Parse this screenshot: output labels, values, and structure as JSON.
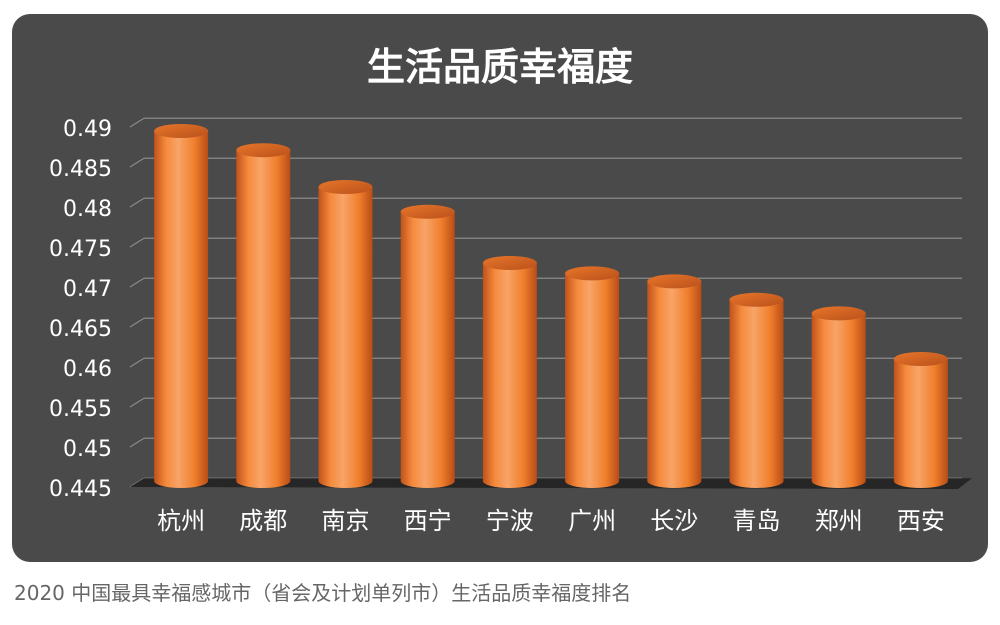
{
  "caption": "2020 中国最具幸福感城市（省会及计划单列市）生活品质幸福度排名",
  "colors": {
    "background": "#4a4a4a",
    "bar_light": "#f8a468",
    "bar_mid": "#f07f2c",
    "bar_dark": "#c0521a",
    "gridline": "#8a8a8a",
    "text": "#ffffff"
  },
  "chart_data": {
    "type": "bar",
    "title": "生活品质幸福度",
    "categories": [
      "杭州",
      "成都",
      "南京",
      "西宁",
      "宁波",
      "广州",
      "长沙",
      "青岛",
      "郑州",
      "西安"
    ],
    "values": [
      0.4895,
      0.4871,
      0.4825,
      0.4794,
      0.473,
      0.4717,
      0.4707,
      0.4684,
      0.4667,
      0.461
    ],
    "yticks": [
      "0.445",
      "0.45",
      "0.455",
      "0.46",
      "0.465",
      "0.47",
      "0.475",
      "0.48",
      "0.485",
      "0.49"
    ],
    "ylim": [
      0.445,
      0.49
    ],
    "grid": true,
    "legend": "none"
  }
}
